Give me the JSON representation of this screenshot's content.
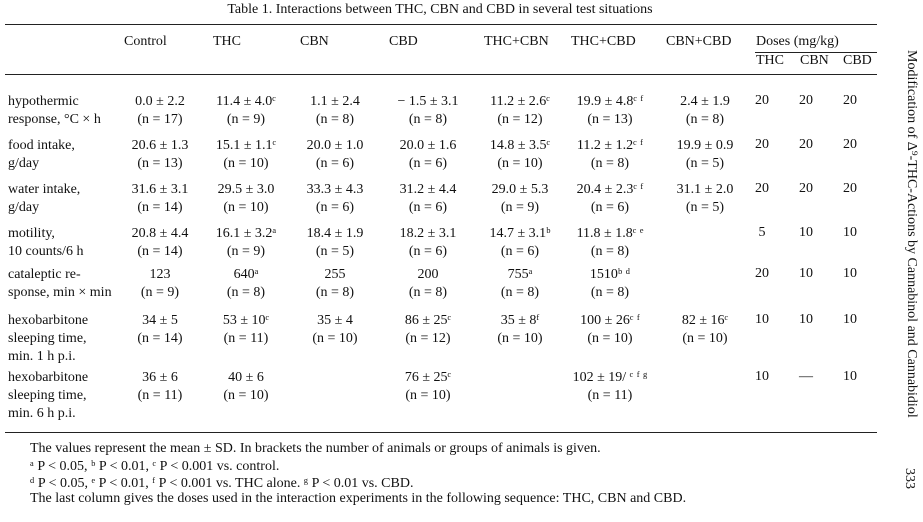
{
  "table": {
    "caption": "Table 1. Interactions between THC, CBN and CBD in several test situations",
    "columns": [
      "Control",
      "THC",
      "CBN",
      "CBD",
      "THC+CBN",
      "THC+CBD",
      "CBN+CBD"
    ],
    "doses_header": "Doses (mg/kg)",
    "dose_columns": [
      "THC",
      "CBN",
      "CBD"
    ],
    "rows": [
      {
        "label": "hypothermic\nresponse, °C × h",
        "cells": [
          [
            "0.0 ± 2.2",
            "(n = 17)"
          ],
          [
            "11.4 ± 4.0ᶜ",
            "(n = 9)"
          ],
          [
            "1.1 ± 2.4",
            "(n = 8)"
          ],
          [
            "− 1.5 ± 3.1",
            "(n = 8)"
          ],
          [
            "11.2 ± 2.6ᶜ",
            "(n = 12)"
          ],
          [
            "19.9 ± 4.8ᶜ ᶠ",
            "(n = 13)"
          ],
          [
            "2.4 ± 1.9",
            "(n = 8)"
          ]
        ],
        "doses": [
          "20",
          "20",
          "20"
        ]
      },
      {
        "label": "food intake,\ng/day",
        "cells": [
          [
            "20.6 ± 1.3",
            "(n = 13)"
          ],
          [
            "15.1 ± 1.1ᶜ",
            "(n = 10)"
          ],
          [
            "20.0 ± 1.0",
            "(n = 6)"
          ],
          [
            "20.0 ± 1.6",
            "(n = 6)"
          ],
          [
            "14.8 ± 3.5ᶜ",
            "(n = 10)"
          ],
          [
            "11.2 ± 1.2ᶜ ᶠ",
            "(n = 8)"
          ],
          [
            "19.9 ± 0.9",
            "(n = 5)"
          ]
        ],
        "doses": [
          "20",
          "20",
          "20"
        ]
      },
      {
        "label": "water intake,\ng/day",
        "cells": [
          [
            "31.6 ± 3.1",
            "(n = 14)"
          ],
          [
            "29.5 ± 3.0",
            "(n = 10)"
          ],
          [
            "33.3 ± 4.3",
            "(n = 6)"
          ],
          [
            "31.2 ± 4.4",
            "(n = 6)"
          ],
          [
            "29.0 ± 5.3",
            "(n = 9)"
          ],
          [
            "20.4 ± 2.3ᶜ ᶠ",
            "(n = 6)"
          ],
          [
            "31.1 ± 2.0",
            "(n = 5)"
          ]
        ],
        "doses": [
          "20",
          "20",
          "20"
        ]
      },
      {
        "label": "motility,\n10 counts/6 h",
        "cells": [
          [
            "20.8 ± 4.4",
            "(n = 14)"
          ],
          [
            "16.1 ± 3.2ᵃ",
            "(n = 9)"
          ],
          [
            "18.4 ± 1.9",
            "(n = 5)"
          ],
          [
            "18.2 ± 3.1",
            "(n = 6)"
          ],
          [
            "14.7 ± 3.1ᵇ",
            "(n = 6)"
          ],
          [
            "11.8 ± 1.8ᶜ ᵉ",
            "(n = 8)"
          ],
          [
            "",
            ""
          ]
        ],
        "doses": [
          "5",
          "10",
          "10"
        ]
      },
      {
        "label": "cataleptic re-\nsponse, min × min",
        "cells": [
          [
            "123",
            "(n = 9)"
          ],
          [
            "640ᵃ",
            "(n = 8)"
          ],
          [
            "255",
            "(n = 8)"
          ],
          [
            "200",
            "(n = 8)"
          ],
          [
            "755ᵃ",
            "(n = 8)"
          ],
          [
            "1510ᵇ ᵈ",
            "(n = 8)"
          ],
          [
            "",
            ""
          ]
        ],
        "doses": [
          "20",
          "10",
          "10"
        ]
      },
      {
        "label": "hexobarbitone\nsleeping time,\nmin. 1 h p.i.",
        "cells": [
          [
            "34 ± 5",
            "(n = 14)"
          ],
          [
            "53 ± 10ᶜ",
            "(n = 11)"
          ],
          [
            "35 ± 4",
            "(n = 10)"
          ],
          [
            "86 ± 25ᶜ",
            "(n = 12)"
          ],
          [
            "35 ± 8ᶠ",
            "(n = 10)"
          ],
          [
            "100 ± 26ᶜ ᶠ",
            "(n = 10)"
          ],
          [
            "82 ± 16ᶜ",
            "(n = 10)"
          ]
        ],
        "doses": [
          "10",
          "10",
          "10"
        ]
      },
      {
        "label": "hexobarbitone\nsleeping time,\nmin. 6 h p.i.",
        "cells": [
          [
            "36 ± 6",
            "(n = 11)"
          ],
          [
            "40 ± 6",
            "(n = 10)"
          ],
          [
            "",
            ""
          ],
          [
            "76 ± 25ᶜ",
            "(n = 10)"
          ],
          [
            "",
            ""
          ],
          [
            "102 ± 19/ ᶜ ᶠ ᵍ",
            "(n = 11)"
          ],
          [
            "",
            ""
          ]
        ],
        "doses": [
          "10",
          "—",
          "10"
        ]
      }
    ]
  },
  "footnotes": [
    "The values represent the mean ± SD. In brackets the number of animals or groups of animals is given.",
    "ᵃ P < 0.05, ᵇ P < 0.01, ᶜ P < 0.001 vs. control.",
    "ᵈ P < 0.05, ᵉ P < 0.01, ᶠ P < 0.001 vs. THC alone. ᵍ P < 0.01 vs. CBD.",
    "The last column gives the doses used in the interaction experiments in the following sequence: THC, CBN and CBD."
  ],
  "running_head": "Modification of Δ⁹-THC-Actions by Cannabinol and Cannabidiol",
  "page_number": "333"
}
